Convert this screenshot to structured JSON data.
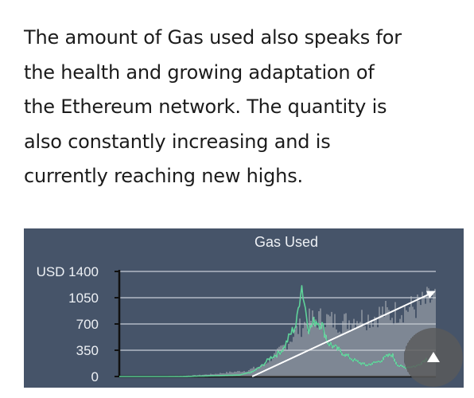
{
  "article": {
    "lines": [
      "The amount of Gas used also speaks for",
      "the health and growing adaptation of",
      "the Ethereum network. The quantity is",
      "also constantly increasing and is",
      "currently reaching new highs."
    ]
  },
  "chart_data": {
    "type": "area",
    "title": "Gas Used",
    "y_ticks": [
      "USD 1400",
      "1050",
      "700",
      "350",
      "0"
    ],
    "y_tick_values": [
      1400,
      1050,
      700,
      350,
      0
    ],
    "ylim": [
      0,
      1400
    ],
    "xlim": [
      0,
      1
    ],
    "grid": true,
    "colors": {
      "background": "#465469",
      "grid": "#c8ced8",
      "bars": "#c9ccd0",
      "line": "#5fd39a",
      "trend": "#ffffff",
      "text": "#eef1f5"
    },
    "bar_series": {
      "name": "",
      "x": [
        0.0,
        0.05,
        0.1,
        0.15,
        0.2,
        0.25,
        0.3,
        0.35,
        0.4,
        0.45,
        0.5,
        0.52,
        0.54,
        0.56,
        0.58,
        0.6,
        0.62,
        0.64,
        0.66,
        0.68,
        0.7,
        0.72,
        0.74,
        0.76,
        0.78,
        0.8,
        0.82,
        0.84,
        0.86,
        0.88,
        0.9,
        0.92,
        0.94,
        0.96,
        0.98,
        1.0
      ],
      "values": [
        0,
        0,
        0,
        5,
        10,
        20,
        35,
        60,
        80,
        150,
        330,
        420,
        520,
        640,
        720,
        790,
        810,
        820,
        800,
        770,
        760,
        780,
        810,
        840,
        820,
        830,
        880,
        900,
        870,
        920,
        950,
        960,
        980,
        1020,
        1070,
        1100
      ]
    },
    "line_series": {
      "name": "",
      "x": [
        0.0,
        0.1,
        0.2,
        0.3,
        0.38,
        0.42,
        0.45,
        0.48,
        0.5,
        0.52,
        0.54,
        0.56,
        0.575,
        0.585,
        0.6,
        0.62,
        0.64,
        0.66,
        0.7,
        0.74,
        0.78,
        0.82,
        0.86,
        0.88,
        0.9,
        0.94,
        0.97,
        1.0
      ],
      "values": [
        0,
        0,
        0,
        10,
        20,
        60,
        140,
        260,
        300,
        380,
        560,
        700,
        1260,
        980,
        620,
        760,
        690,
        450,
        330,
        220,
        150,
        200,
        300,
        150,
        120,
        140,
        240,
        200
      ]
    },
    "trend": {
      "x": [
        0.42,
        1.0
      ],
      "values": [
        0,
        1140
      ]
    }
  },
  "ui": {
    "scroll_top_icon": "up-arrow-icon"
  }
}
